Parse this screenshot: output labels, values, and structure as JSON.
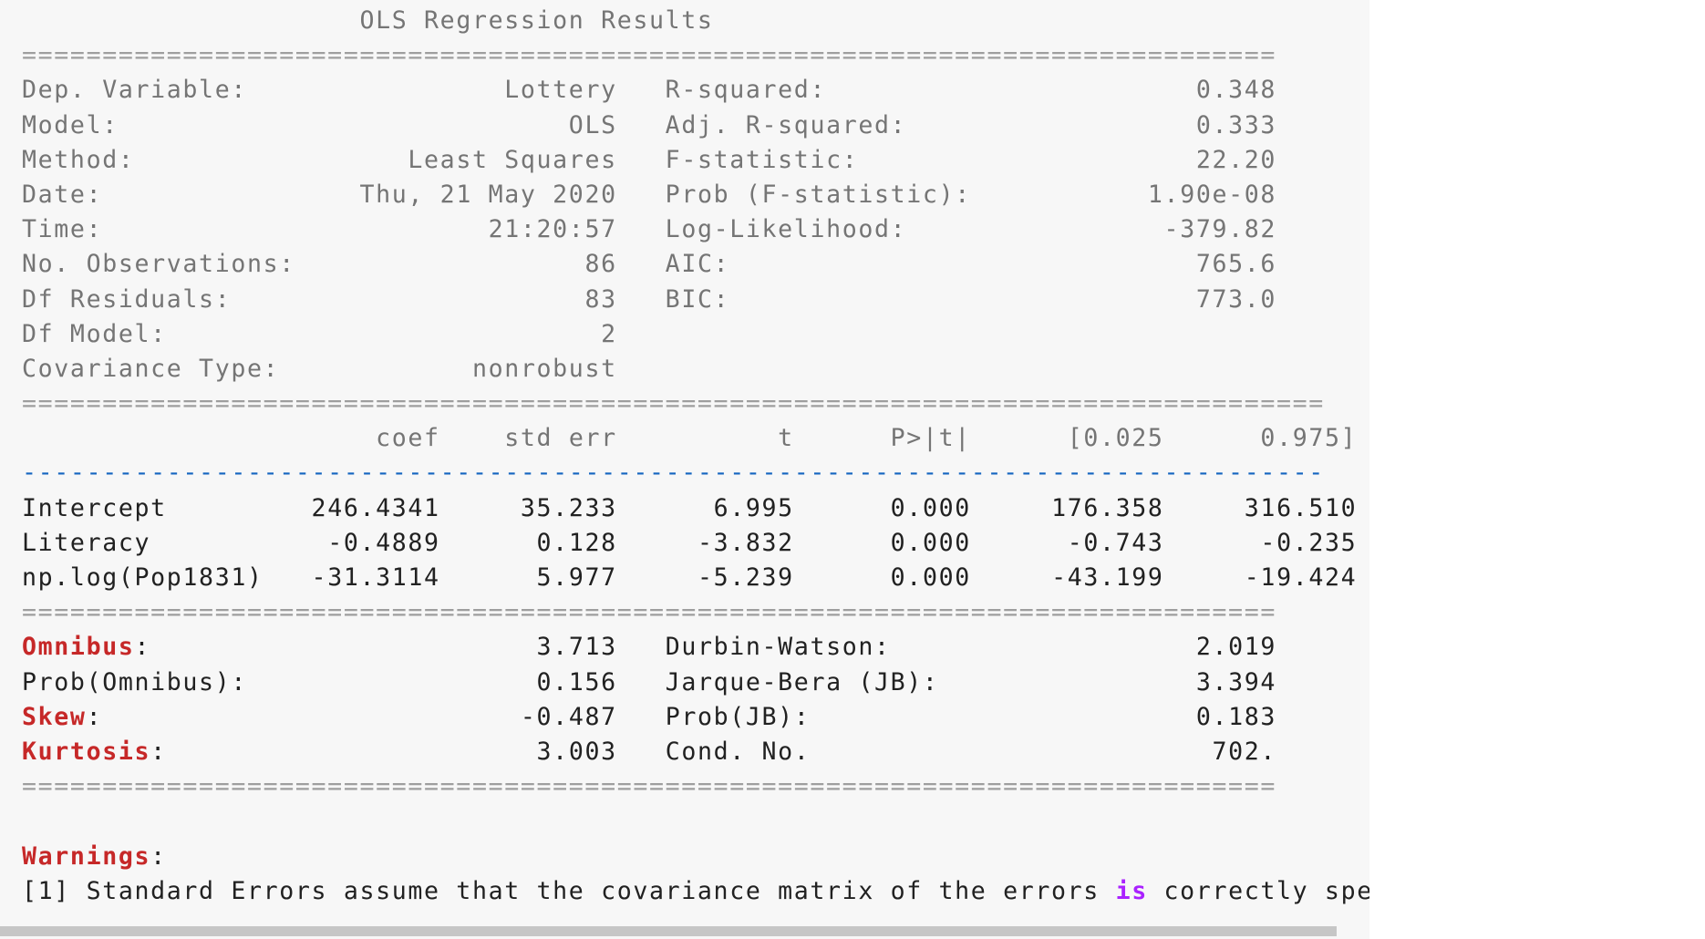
{
  "title": "OLS Regression Results",
  "separator_short": "==============================================================================",
  "separator_long": "=================================================================================",
  "dash_line": "---------------------------------------------------------------------------------",
  "model_info": [
    {
      "l_label": "Dep. Variable:",
      "l_value": "Lottery",
      "r_label": "R-squared:",
      "r_value": "0.348"
    },
    {
      "l_label": "Model:",
      "l_value": "OLS",
      "r_label": "Adj. R-squared:",
      "r_value": "0.333"
    },
    {
      "l_label": "Method:",
      "l_value": "Least Squares",
      "r_label": "F-statistic:",
      "r_value": "22.20"
    },
    {
      "l_label": "Date:",
      "l_value": "Thu, 21 May 2020",
      "r_label": "Prob (F-statistic):",
      "r_value": "1.90e-08"
    },
    {
      "l_label": "Time:",
      "l_value": "21:20:57",
      "r_label": "Log-Likelihood:",
      "r_value": "-379.82"
    },
    {
      "l_label": "No. Observations:",
      "l_value": "86",
      "r_label": "AIC:",
      "r_value": "765.6"
    },
    {
      "l_label": "Df Residuals:",
      "l_value": "83",
      "r_label": "BIC:",
      "r_value": "773.0"
    },
    {
      "l_label": "Df Model:",
      "l_value": "2",
      "r_label": "",
      "r_value": ""
    },
    {
      "l_label": "Covariance Type:",
      "l_value": "nonrobust",
      "r_label": "",
      "r_value": ""
    }
  ],
  "coef_headers": [
    "coef",
    "std err",
    "t",
    "P>|t|",
    "[0.025",
    "0.975]"
  ],
  "coef_rows": [
    {
      "name": "Intercept",
      "values": [
        "246.4341",
        "35.233",
        "6.995",
        "0.000",
        "176.358",
        "316.510"
      ]
    },
    {
      "name": "Literacy",
      "values": [
        "-0.4889",
        "0.128",
        "-3.832",
        "0.000",
        "-0.743",
        "-0.235"
      ]
    },
    {
      "name": "np.log(Pop1831)",
      "values": [
        "-31.3114",
        "5.977",
        "-5.239",
        "0.000",
        "-43.199",
        "-19.424"
      ]
    }
  ],
  "diag_rows": [
    {
      "l_label": "Omnibus",
      "l_keyword": true,
      "l_value": "3.713",
      "r_label": "Durbin-Watson:",
      "r_value": "2.019"
    },
    {
      "l_label": "Prob(Omnibus):",
      "l_keyword": false,
      "l_value": "0.156",
      "r_label": "Jarque-Bera (JB):",
      "r_value": "3.394"
    },
    {
      "l_label": "Skew",
      "l_keyword": true,
      "l_value": "-0.487",
      "r_label": "Prob(JB):",
      "r_value": "0.183"
    },
    {
      "l_label": "Kurtosis",
      "l_keyword": true,
      "l_value": "3.003",
      "r_label": "Cond. No.",
      "r_value": "702."
    }
  ],
  "warnings": {
    "label": "Warnings",
    "line_before": "[1] Standard Errors assume that the covariance matrix of the errors ",
    "keyword": "is",
    "line_after": " correctly specified"
  },
  "colors": {
    "cell_background": "#f7f7f7",
    "text": "#212121",
    "muted_text": "#757575",
    "keyword_red": "#c62828",
    "keyword_purple": "#aa22ff",
    "dash_line_blue": "#1565c0",
    "scrollbar": "#c6c6c6"
  }
}
